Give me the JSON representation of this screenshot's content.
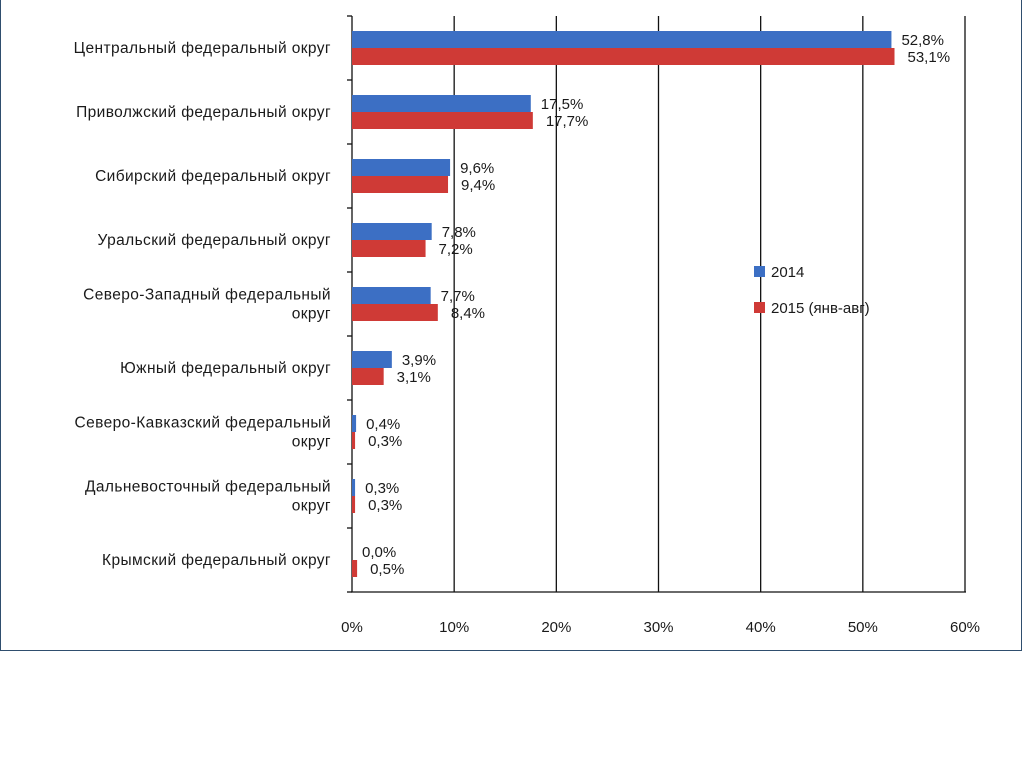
{
  "colors": {
    "s2014": "#3c6fc4",
    "s2015": "#cf3a36",
    "grid": "#111111"
  },
  "chart_data": {
    "type": "bar",
    "orientation": "horizontal",
    "categories": [
      [
        "Центральный федеральный округ"
      ],
      [
        "Приволжский федеральный округ"
      ],
      [
        "Сибирский федеральный округ"
      ],
      [
        "Уральский федеральный округ"
      ],
      [
        "Северо-Западный федеральный",
        "округ"
      ],
      [
        "Южный федеральный округ"
      ],
      [
        "Северо-Кавказский федеральный",
        "округ"
      ],
      [
        "Дальневосточный федеральный",
        "округ"
      ],
      [
        "Крымский федеральный округ"
      ]
    ],
    "series": [
      {
        "name": "2014",
        "values": [
          52.8,
          17.5,
          9.6,
          7.8,
          7.7,
          3.9,
          0.4,
          0.3,
          0.0
        ],
        "labels": [
          "52,8%",
          "17,5%",
          "9,6%",
          "7,8%",
          "7,7%",
          "3,9%",
          "0,4%",
          "0,3%",
          "0,0%"
        ]
      },
      {
        "name": "2015 (янв-авг)",
        "values": [
          53.1,
          17.7,
          9.4,
          7.2,
          8.4,
          3.1,
          0.3,
          0.3,
          0.5
        ],
        "labels": [
          "53,1%",
          "17,7%",
          "9,4%",
          "7,2%",
          "8,4%",
          "3,1%",
          "0,3%",
          "0,3%",
          "0,5%"
        ]
      }
    ],
    "xlim": [
      0,
      60
    ],
    "xticks": [
      0,
      10,
      20,
      30,
      40,
      50,
      60
    ],
    "xtick_labels": [
      "0%",
      "10%",
      "20%",
      "30%",
      "40%",
      "50%",
      "60%"
    ],
    "grid": true,
    "legend_position": "right"
  }
}
